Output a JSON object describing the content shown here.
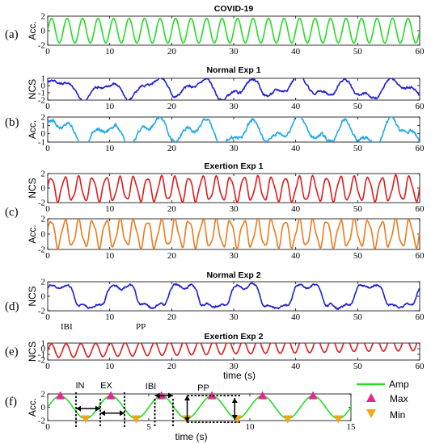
{
  "panel_labels": [
    "(a)",
    "(b)",
    "(c)",
    "(d)",
    "(e)",
    "(f)"
  ],
  "time_axis_label": "time (s)",
  "free_labels": {
    "ibi": "IBI",
    "pp": "PP"
  },
  "annotations": {
    "in": "IN",
    "ex": "EX",
    "ibi": "IBI",
    "pp": "PP"
  },
  "legend": {
    "amp": "Amp",
    "max": "Max",
    "min": "Min"
  },
  "colors": {
    "covid": "#22dd22",
    "normal1_ncs": "#1f1fd0",
    "normal1_acc": "#22a8e6",
    "exertion1_ncs": "#e01b1b",
    "exertion1_acc": "#ee7a1c",
    "normal2_ncs": "#1f1fd0",
    "exertion2_ncs": "#e01b1b",
    "amp": "#22dd22",
    "max": "#e6278f",
    "min": "#f0a61a"
  },
  "chart_data": [
    {
      "type": "line",
      "title": "COVID-19",
      "ylabel": "Acc.",
      "xlim": [
        0,
        60
      ],
      "ylim": [
        -2,
        2
      ],
      "xticks": [
        0,
        10,
        20,
        30,
        40,
        50,
        60
      ],
      "yticks": [
        -2,
        0,
        2
      ],
      "series": [
        {
          "color_key": "covid",
          "signal": {
            "kind": "periodic",
            "freq": 0.4,
            "amp": 1.7,
            "offset": 0.0
          }
        }
      ]
    },
    {
      "type": "line",
      "title": "Normal  Exp 1",
      "ylabel": "NCS",
      "xlim": [
        0,
        60
      ],
      "ylim": [
        -2,
        1
      ],
      "xticks": [
        0,
        10,
        20,
        30,
        40,
        50,
        60
      ],
      "yticks": [
        -2,
        -1,
        0,
        1
      ],
      "series": [
        {
          "color_key": "normal1_ncs",
          "signal": {
            "kind": "breathing",
            "freq": 0.13,
            "amp": 1.5,
            "offset": -0.4,
            "harmonic": 0.35,
            "noise": 0.25
          }
        }
      ]
    },
    {
      "type": "line",
      "title": "",
      "ylabel": "Acc.",
      "xlim": [
        0,
        60
      ],
      "ylim": [
        -1,
        2
      ],
      "xticks": [
        0,
        10,
        20,
        30,
        40,
        50,
        60
      ],
      "yticks": [
        -1,
        0,
        1,
        2
      ],
      "series": [
        {
          "color_key": "normal1_acc",
          "signal": {
            "kind": "breathing",
            "freq": 0.13,
            "amp": 1.6,
            "offset": 0.2,
            "harmonic": 0.45,
            "noise": 0.3
          }
        }
      ]
    },
    {
      "type": "line",
      "title": "Exertion Exp 1",
      "ylabel": "NCS",
      "xlim": [
        0,
        60
      ],
      "ylim": [
        -2,
        2
      ],
      "xticks": [
        0,
        10,
        20,
        30,
        40,
        50,
        60
      ],
      "yticks": [
        -2,
        0,
        2
      ],
      "series": [
        {
          "color_key": "exertion1_ncs",
          "signal": {
            "kind": "periodic",
            "freq": 0.45,
            "amp": 1.6,
            "offset": -0.1,
            "harmonic": 0.15,
            "noise": 0.1
          }
        }
      ]
    },
    {
      "type": "line",
      "title": "",
      "ylabel": "Acc.",
      "xlim": [
        0,
        60
      ],
      "ylim": [
        -2,
        2
      ],
      "xticks": [
        0,
        10,
        20,
        30,
        40,
        50,
        60
      ],
      "yticks": [
        -2,
        0,
        2
      ],
      "series": [
        {
          "color_key": "exertion1_acc",
          "signal": {
            "kind": "periodic",
            "freq": 0.45,
            "amp": 1.7,
            "offset": 0.1,
            "harmonic": 0.2,
            "noise": 0.1
          }
        }
      ]
    },
    {
      "type": "line",
      "title": "Normal  Exp 2",
      "ylabel": "NCS",
      "xlim": [
        0,
        60
      ],
      "ylim": [
        -2,
        2
      ],
      "xticks": [
        0,
        10,
        20,
        30,
        40,
        50,
        60
      ],
      "yticks": [
        -2,
        0,
        2
      ],
      "series": [
        {
          "color_key": "normal2_ncs",
          "signal": {
            "kind": "square",
            "freq": 0.1,
            "amp": 1.5,
            "offset": 0.0,
            "noise": 0.2
          }
        }
      ]
    },
    {
      "type": "line",
      "title": "Exertion Exp 2",
      "ylabel": "NCS",
      "xlim": [
        0,
        60
      ],
      "ylim": [
        -2,
        1
      ],
      "xticks": [
        0,
        10,
        20,
        30,
        40,
        50,
        60
      ],
      "yticks": [
        -2,
        -1,
        0,
        1
      ],
      "series": [
        {
          "color_key": "exertion2_ncs",
          "signal": {
            "kind": "periodic",
            "freq": 0.42,
            "amp": 1.2,
            "offset": -0.4,
            "trend": 1.3,
            "noise": 0.05
          }
        }
      ]
    },
    {
      "type": "line",
      "title": "",
      "ylabel": "Acc.",
      "xlabel": "time (s)",
      "xlim": [
        0,
        15
      ],
      "ylim": [
        -2,
        2
      ],
      "xticks": [
        0,
        5,
        10,
        15
      ],
      "yticks": [
        -2,
        0,
        2
      ],
      "series": [
        {
          "color_key": "amp",
          "signal": {
            "kind": "periodic",
            "freq": 0.4,
            "amp": 1.7,
            "offset": 0.0
          }
        }
      ],
      "max_points_x": [
        0.625,
        3.125,
        5.625,
        8.125,
        10.625,
        13.125
      ],
      "min_points_x": [
        1.875,
        4.375,
        6.875,
        9.375,
        11.875,
        14.375
      ],
      "max_value": 1.7,
      "min_value": -1.7
    }
  ]
}
